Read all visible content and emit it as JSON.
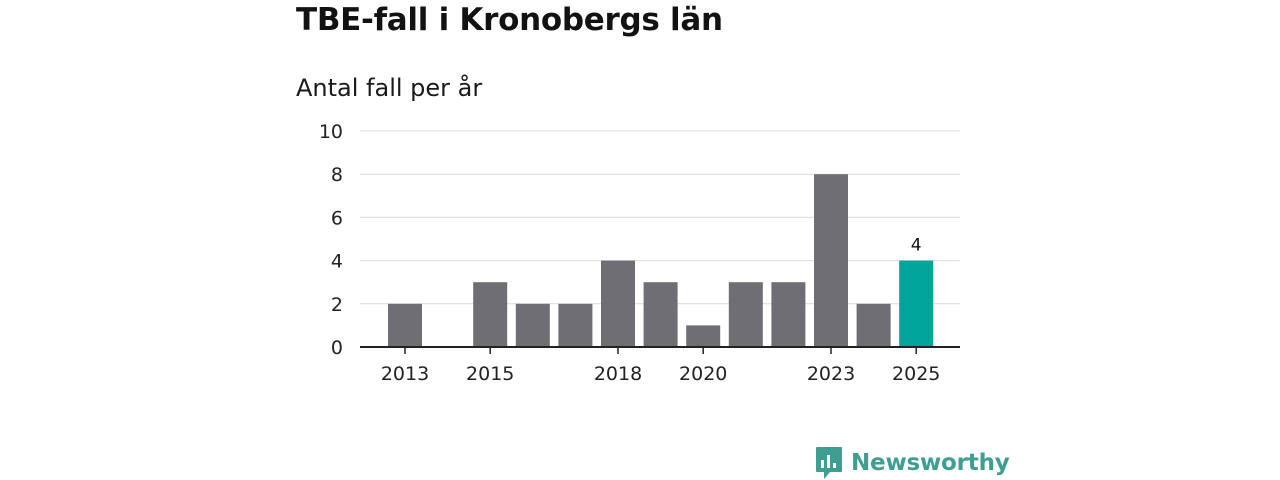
{
  "title": "TBE-fall i Kronobergs län",
  "subtitle": "Antal fall per år",
  "brand": {
    "name": "Newsworthy",
    "color": "#3d9e91",
    "icon": "bar-chart-speech-bubble-icon"
  },
  "colors": {
    "bar": "#6e6e73",
    "highlight": "#00a499",
    "grid": "#d9d9d9",
    "axis": "#222222"
  },
  "chart_data": {
    "type": "bar",
    "title": "TBE-fall i Kronobergs län",
    "subtitle": "Antal fall per år",
    "xlabel": "",
    "ylabel": "",
    "categories": [
      "2013",
      "2014",
      "2015",
      "2016",
      "2017",
      "2018",
      "2019",
      "2020",
      "2021",
      "2022",
      "2023",
      "2024",
      "2025"
    ],
    "values": [
      2,
      0,
      3,
      2,
      2,
      4,
      3,
      1,
      3,
      3,
      8,
      2,
      4
    ],
    "x_tick_labels": [
      "2013",
      "2015",
      "2018",
      "2020",
      "2023",
      "2025"
    ],
    "y_ticks": [
      0,
      2,
      4,
      6,
      8,
      10
    ],
    "ylim": [
      0,
      10
    ],
    "grid": true,
    "highlight_category": "2025",
    "data_labels": [
      {
        "category": "2025",
        "text": "4"
      }
    ]
  }
}
